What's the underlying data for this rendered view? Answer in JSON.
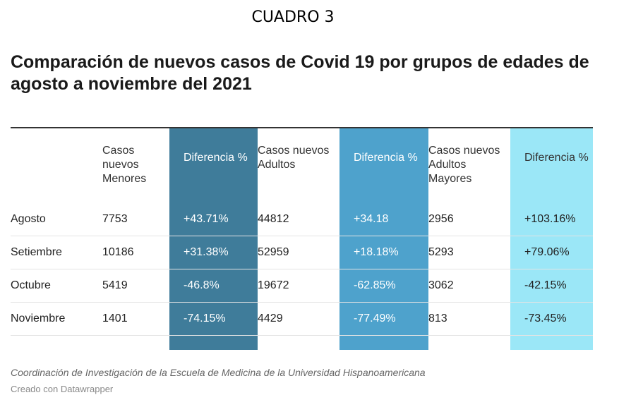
{
  "header_label": "CUADRO 3",
  "title": "Comparación de nuevos casos de Covid 19 por grupos de edades de agosto a noviembre del 2021",
  "colors": {
    "menores_diff": "#3f7c9a",
    "adultos_diff": "#4ea2cc",
    "mayores_diff": "#9be7f7",
    "rule": "#333333"
  },
  "chart_data": {
    "type": "table",
    "columns": [
      "",
      "Casos nuevos Menores",
      "Diferencia %",
      "Casos nuevos Adultos",
      "Diferencia %",
      "Casos nuevos Adultos Mayores",
      "Diferencia %"
    ],
    "rows": [
      [
        "Agosto",
        "7753",
        "+43.71%",
        "44812",
        "+34.18",
        "2956",
        "+103.16%"
      ],
      [
        "Setiembre",
        "10186",
        "+31.38%",
        "52959",
        "+18.18%",
        "5293",
        "+79.06%"
      ],
      [
        "Octubre",
        "5419",
        "-46.8%",
        "19672",
        "-62.85%",
        "3062",
        "-42.15%"
      ],
      [
        "Noviembre",
        "1401",
        "-74.15%",
        "4429",
        "-77.49%",
        "813",
        "-73.45%"
      ]
    ]
  },
  "footer": {
    "source": "Coordinación de Investigación de la Escuela de Medicina de la Universidad Hispanoamericana",
    "credit": "Creado con Datawrapper"
  }
}
